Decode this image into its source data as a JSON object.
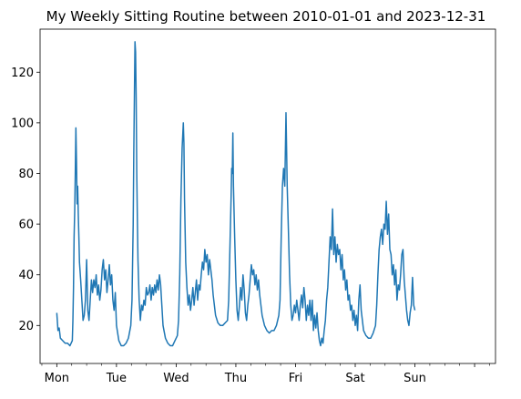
{
  "chart_data": {
    "type": "line",
    "title": "My Weekly Sitting Routine between 2010-01-01 and 2023-12-31",
    "xlabel": "",
    "ylabel": "",
    "xlim": [
      -0.28,
      7.35
    ],
    "ylim": [
      5,
      137
    ],
    "x_ticks": [
      {
        "value": 0,
        "label": "Mon"
      },
      {
        "value": 1,
        "label": "Tue"
      },
      {
        "value": 2,
        "label": "Wed"
      },
      {
        "value": 3,
        "label": "Thu"
      },
      {
        "value": 4,
        "label": "Fri"
      },
      {
        "value": 5,
        "label": "Sat"
      },
      {
        "value": 6,
        "label": "Sun"
      },
      {
        "value": 7,
        "label": ""
      }
    ],
    "y_ticks": [
      20,
      40,
      60,
      80,
      100,
      120
    ],
    "grid": false,
    "line_color": "#1f77b4",
    "series": [
      {
        "name": "",
        "points": [
          [
            0.0,
            25
          ],
          [
            0.02,
            18
          ],
          [
            0.04,
            19
          ],
          [
            0.06,
            15
          ],
          [
            0.1,
            14
          ],
          [
            0.14,
            13
          ],
          [
            0.18,
            13
          ],
          [
            0.22,
            12
          ],
          [
            0.26,
            14
          ],
          [
            0.27,
            22
          ],
          [
            0.28,
            35
          ],
          [
            0.29,
            55
          ],
          [
            0.3,
            65
          ],
          [
            0.31,
            80
          ],
          [
            0.32,
            98
          ],
          [
            0.33,
            85
          ],
          [
            0.34,
            68
          ],
          [
            0.35,
            75
          ],
          [
            0.36,
            64
          ],
          [
            0.37,
            55
          ],
          [
            0.38,
            45
          ],
          [
            0.4,
            38
          ],
          [
            0.42,
            30
          ],
          [
            0.44,
            22
          ],
          [
            0.46,
            24
          ],
          [
            0.48,
            30
          ],
          [
            0.5,
            46
          ],
          [
            0.52,
            26
          ],
          [
            0.54,
            22
          ],
          [
            0.56,
            30
          ],
          [
            0.58,
            38
          ],
          [
            0.6,
            33
          ],
          [
            0.62,
            38
          ],
          [
            0.64,
            35
          ],
          [
            0.66,
            40
          ],
          [
            0.68,
            32
          ],
          [
            0.7,
            36
          ],
          [
            0.72,
            30
          ],
          [
            0.74,
            34
          ],
          [
            0.76,
            42
          ],
          [
            0.78,
            46
          ],
          [
            0.8,
            38
          ],
          [
            0.82,
            42
          ],
          [
            0.84,
            33
          ],
          [
            0.86,
            38
          ],
          [
            0.88,
            44
          ],
          [
            0.9,
            36
          ],
          [
            0.92,
            40
          ],
          [
            0.94,
            30
          ],
          [
            0.96,
            26
          ],
          [
            0.98,
            33
          ],
          [
            1.0,
            20
          ],
          [
            1.04,
            14
          ],
          [
            1.08,
            12
          ],
          [
            1.12,
            12
          ],
          [
            1.16,
            13
          ],
          [
            1.2,
            15
          ],
          [
            1.24,
            20
          ],
          [
            1.26,
            30
          ],
          [
            1.28,
            60
          ],
          [
            1.29,
            88
          ],
          [
            1.3,
            110
          ],
          [
            1.31,
            132
          ],
          [
            1.32,
            128
          ],
          [
            1.33,
            110
          ],
          [
            1.34,
            80
          ],
          [
            1.35,
            62
          ],
          [
            1.36,
            46
          ],
          [
            1.38,
            30
          ],
          [
            1.4,
            22
          ],
          [
            1.42,
            28
          ],
          [
            1.44,
            26
          ],
          [
            1.46,
            30
          ],
          [
            1.48,
            28
          ],
          [
            1.5,
            35
          ],
          [
            1.52,
            32
          ],
          [
            1.54,
            33
          ],
          [
            1.56,
            36
          ],
          [
            1.58,
            30
          ],
          [
            1.6,
            35
          ],
          [
            1.62,
            32
          ],
          [
            1.64,
            36
          ],
          [
            1.66,
            33
          ],
          [
            1.68,
            38
          ],
          [
            1.7,
            34
          ],
          [
            1.72,
            40
          ],
          [
            1.74,
            36
          ],
          [
            1.76,
            28
          ],
          [
            1.78,
            20
          ],
          [
            1.82,
            15
          ],
          [
            1.86,
            13
          ],
          [
            1.9,
            12
          ],
          [
            1.94,
            12
          ],
          [
            1.98,
            14
          ],
          [
            2.02,
            16
          ],
          [
            2.04,
            22
          ],
          [
            2.06,
            40
          ],
          [
            2.08,
            70
          ],
          [
            2.1,
            90
          ],
          [
            2.12,
            100
          ],
          [
            2.13,
            92
          ],
          [
            2.14,
            70
          ],
          [
            2.16,
            45
          ],
          [
            2.18,
            35
          ],
          [
            2.2,
            28
          ],
          [
            2.22,
            32
          ],
          [
            2.24,
            26
          ],
          [
            2.26,
            30
          ],
          [
            2.28,
            35
          ],
          [
            2.3,
            28
          ],
          [
            2.32,
            33
          ],
          [
            2.34,
            38
          ],
          [
            2.36,
            30
          ],
          [
            2.38,
            36
          ],
          [
            2.4,
            34
          ],
          [
            2.42,
            40
          ],
          [
            2.44,
            45
          ],
          [
            2.46,
            42
          ],
          [
            2.48,
            50
          ],
          [
            2.5,
            45
          ],
          [
            2.52,
            48
          ],
          [
            2.54,
            40
          ],
          [
            2.56,
            46
          ],
          [
            2.58,
            42
          ],
          [
            2.6,
            38
          ],
          [
            2.62,
            32
          ],
          [
            2.64,
            28
          ],
          [
            2.66,
            24
          ],
          [
            2.7,
            21
          ],
          [
            2.74,
            20
          ],
          [
            2.78,
            20
          ],
          [
            2.82,
            21
          ],
          [
            2.86,
            22
          ],
          [
            2.88,
            30
          ],
          [
            2.9,
            50
          ],
          [
            2.92,
            70
          ],
          [
            2.93,
            82
          ],
          [
            2.94,
            80
          ],
          [
            2.95,
            96
          ],
          [
            2.96,
            75
          ],
          [
            2.98,
            55
          ],
          [
            3.0,
            38
          ],
          [
            3.02,
            26
          ],
          [
            3.04,
            22
          ],
          [
            3.06,
            28
          ],
          [
            3.08,
            35
          ],
          [
            3.1,
            30
          ],
          [
            3.12,
            40
          ],
          [
            3.14,
            34
          ],
          [
            3.16,
            25
          ],
          [
            3.18,
            22
          ],
          [
            3.2,
            28
          ],
          [
            3.22,
            32
          ],
          [
            3.24,
            38
          ],
          [
            3.26,
            44
          ],
          [
            3.28,
            40
          ],
          [
            3.3,
            42
          ],
          [
            3.32,
            36
          ],
          [
            3.34,
            40
          ],
          [
            3.36,
            34
          ],
          [
            3.38,
            38
          ],
          [
            3.4,
            32
          ],
          [
            3.42,
            28
          ],
          [
            3.44,
            24
          ],
          [
            3.48,
            20
          ],
          [
            3.52,
            18
          ],
          [
            3.56,
            17
          ],
          [
            3.6,
            18
          ],
          [
            3.64,
            18
          ],
          [
            3.68,
            20
          ],
          [
            3.72,
            24
          ],
          [
            3.74,
            30
          ],
          [
            3.76,
            55
          ],
          [
            3.78,
            75
          ],
          [
            3.8,
            82
          ],
          [
            3.82,
            75
          ],
          [
            3.84,
            104
          ],
          [
            3.85,
            90
          ],
          [
            3.86,
            75
          ],
          [
            3.88,
            58
          ],
          [
            3.9,
            40
          ],
          [
            3.92,
            28
          ],
          [
            3.94,
            22
          ],
          [
            3.96,
            24
          ],
          [
            3.98,
            28
          ],
          [
            4.0,
            25
          ],
          [
            4.02,
            30
          ],
          [
            4.04,
            26
          ],
          [
            4.06,
            22
          ],
          [
            4.08,
            28
          ],
          [
            4.1,
            32
          ],
          [
            4.12,
            27
          ],
          [
            4.14,
            35
          ],
          [
            4.16,
            30
          ],
          [
            4.18,
            22
          ],
          [
            4.2,
            28
          ],
          [
            4.22,
            24
          ],
          [
            4.24,
            30
          ],
          [
            4.26,
            22
          ],
          [
            4.28,
            30
          ],
          [
            4.3,
            18
          ],
          [
            4.32,
            24
          ],
          [
            4.34,
            19
          ],
          [
            4.36,
            25
          ],
          [
            4.38,
            18
          ],
          [
            4.4,
            14
          ],
          [
            4.42,
            12
          ],
          [
            4.44,
            15
          ],
          [
            4.46,
            13
          ],
          [
            4.48,
            18
          ],
          [
            4.5,
            22
          ],
          [
            4.52,
            30
          ],
          [
            4.54,
            35
          ],
          [
            4.56,
            45
          ],
          [
            4.58,
            55
          ],
          [
            4.6,
            50
          ],
          [
            4.62,
            66
          ],
          [
            4.64,
            48
          ],
          [
            4.66,
            55
          ],
          [
            4.68,
            45
          ],
          [
            4.7,
            52
          ],
          [
            4.72,
            48
          ],
          [
            4.74,
            50
          ],
          [
            4.76,
            42
          ],
          [
            4.78,
            48
          ],
          [
            4.8,
            38
          ],
          [
            4.82,
            42
          ],
          [
            4.84,
            34
          ],
          [
            4.86,
            38
          ],
          [
            4.88,
            30
          ],
          [
            4.9,
            32
          ],
          [
            4.92,
            26
          ],
          [
            4.94,
            28
          ],
          [
            4.96,
            22
          ],
          [
            4.98,
            26
          ],
          [
            5.0,
            20
          ],
          [
            5.02,
            24
          ],
          [
            5.04,
            18
          ],
          [
            5.06,
            30
          ],
          [
            5.08,
            36
          ],
          [
            5.1,
            26
          ],
          [
            5.12,
            22
          ],
          [
            5.14,
            18
          ],
          [
            5.18,
            16
          ],
          [
            5.22,
            15
          ],
          [
            5.26,
            15
          ],
          [
            5.3,
            17
          ],
          [
            5.34,
            20
          ],
          [
            5.36,
            28
          ],
          [
            5.38,
            40
          ],
          [
            5.4,
            50
          ],
          [
            5.42,
            55
          ],
          [
            5.44,
            58
          ],
          [
            5.46,
            52
          ],
          [
            5.48,
            60
          ],
          [
            5.5,
            58
          ],
          [
            5.52,
            69
          ],
          [
            5.54,
            56
          ],
          [
            5.56,
            64
          ],
          [
            5.58,
            50
          ],
          [
            5.6,
            48
          ],
          [
            5.62,
            40
          ],
          [
            5.64,
            44
          ],
          [
            5.66,
            36
          ],
          [
            5.68,
            42
          ],
          [
            5.7,
            30
          ],
          [
            5.72,
            36
          ],
          [
            5.74,
            34
          ],
          [
            5.76,
            40
          ],
          [
            5.78,
            48
          ],
          [
            5.8,
            50
          ],
          [
            5.82,
            38
          ],
          [
            5.84,
            32
          ],
          [
            5.86,
            26
          ],
          [
            5.88,
            22
          ],
          [
            5.9,
            20
          ],
          [
            5.92,
            25
          ],
          [
            5.94,
            28
          ],
          [
            5.96,
            39
          ],
          [
            5.98,
            28
          ],
          [
            6.0,
            26
          ]
        ]
      }
    ]
  }
}
